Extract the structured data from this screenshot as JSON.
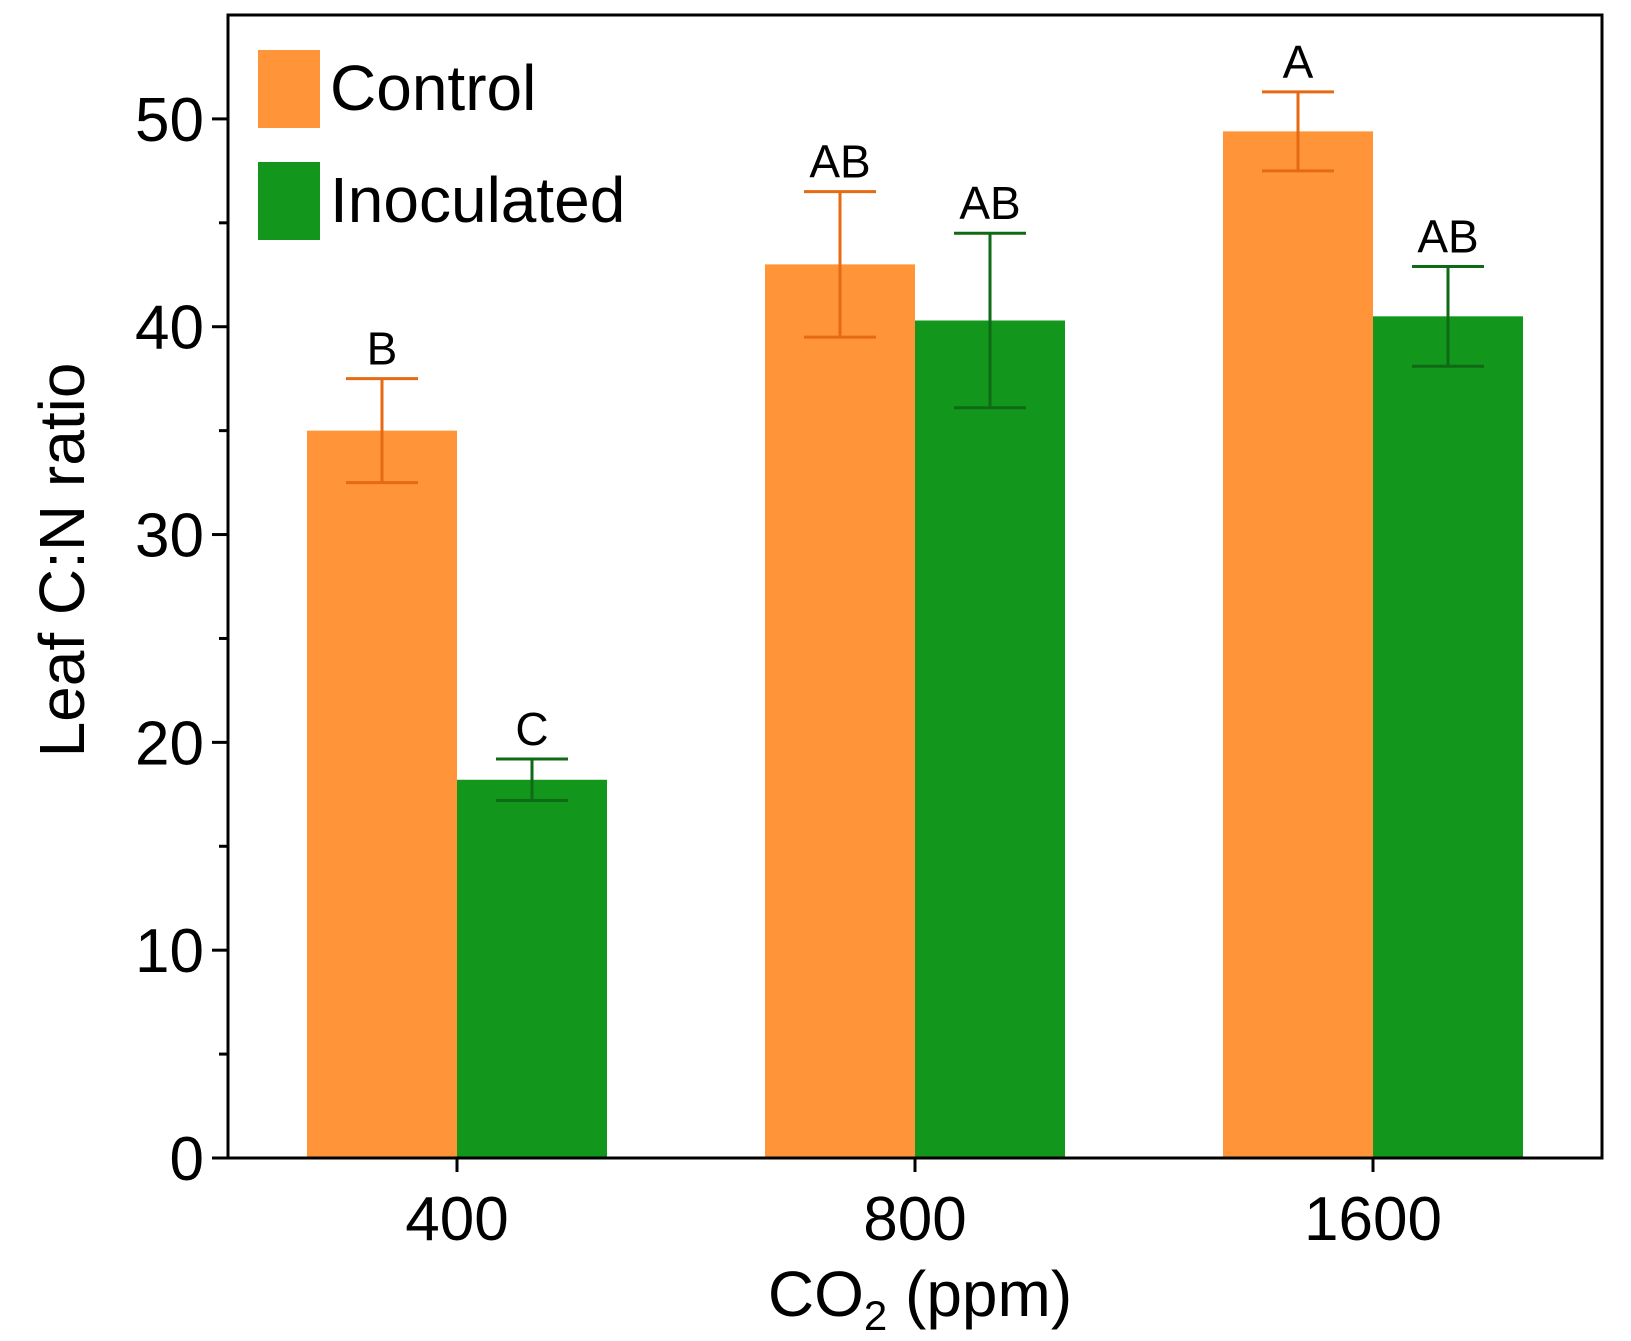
{
  "chart_data": {
    "type": "bar",
    "title": "",
    "xlabel": "CO",
    "xlabel_subscript": "2",
    "xlabel_suffix": " (ppm)",
    "ylabel": "Leaf C:N ratio",
    "ylim": [
      0,
      55
    ],
    "yticks": [
      0,
      10,
      20,
      30,
      40,
      50
    ],
    "yticks_minor": [
      5,
      15,
      25,
      35,
      45
    ],
    "categories": [
      "400",
      "800",
      "1600"
    ],
    "legend_position": "top-left",
    "grid": false,
    "series": [
      {
        "name": "Control",
        "color": "#FF9438",
        "error_color": "#E56A12",
        "values": [
          35.0,
          43.0,
          49.4
        ],
        "errors": [
          2.5,
          3.5,
          1.9
        ],
        "letters": [
          "B",
          "AB",
          "A"
        ]
      },
      {
        "name": "Inoculated",
        "color": "#12961C",
        "error_color": "#0E6A14",
        "values": [
          18.2,
          40.3,
          40.5
        ],
        "errors": [
          1.0,
          4.2,
          2.4
        ],
        "letters": [
          "C",
          "AB",
          "AB"
        ]
      }
    ]
  }
}
